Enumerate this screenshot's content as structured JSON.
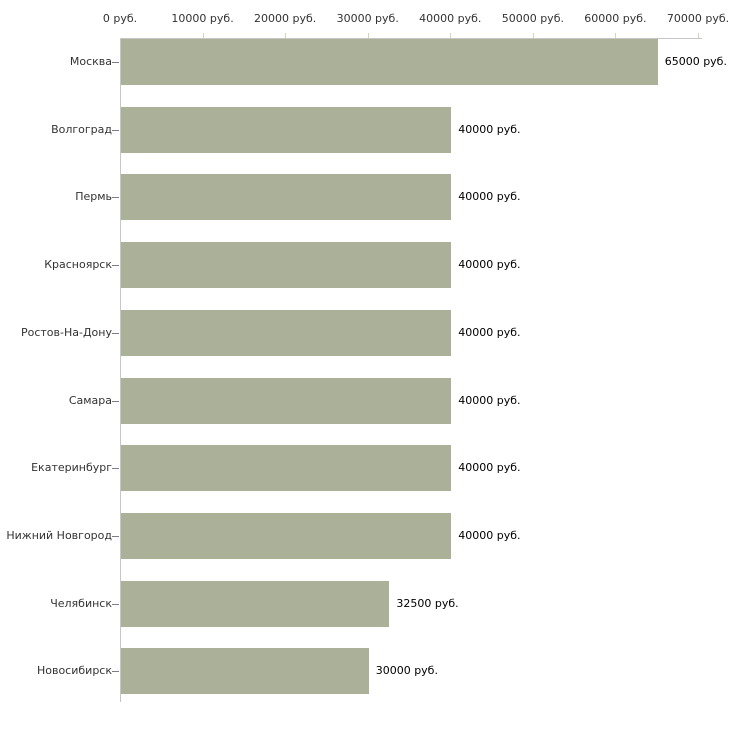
{
  "chart_data": {
    "type": "bar",
    "orientation": "horizontal",
    "title": "",
    "xlabel": "",
    "ylabel": "",
    "categories": [
      "Москва",
      "Волгоград",
      "Пермь",
      "Красноярск",
      "Ростов-На-Дону",
      "Самара",
      "Екатеринбург",
      "Нижний Новгород",
      "Челябинск",
      "Новосибирск"
    ],
    "values": [
      65000,
      40000,
      40000,
      40000,
      40000,
      40000,
      40000,
      40000,
      32500,
      30000
    ],
    "value_labels": [
      "65000 руб.",
      "40000 руб.",
      "40000 руб.",
      "40000 руб.",
      "40000 руб.",
      "40000 руб.",
      "40000 руб.",
      "40000 руб.",
      "32500 руб.",
      "30000 руб."
    ],
    "unit": "руб.",
    "xlim": [
      0,
      70000
    ],
    "x_ticks": [
      0,
      10000,
      20000,
      30000,
      40000,
      50000,
      60000,
      70000
    ],
    "x_tick_labels": [
      "0 руб.",
      "10000 руб.",
      "20000 руб.",
      "30000 руб.",
      "40000 руб.",
      "50000 руб.",
      "60000 руб.",
      "70000 руб."
    ],
    "grid": false,
    "legend": false,
    "colors": {
      "bar": "#abb199",
      "axis_line": "#c6c6c6",
      "tick_mark": "#d4d6b0",
      "category_tick": "#7f7f7f",
      "tick_text": "#333333",
      "value_text": "#000000",
      "background": "#ffffff"
    }
  }
}
